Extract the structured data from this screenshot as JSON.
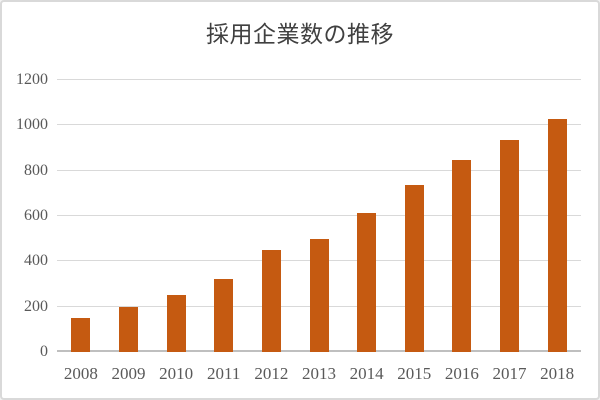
{
  "window": {
    "background_color": "#ffffff",
    "border_color": "#d9d9d9"
  },
  "chart_data": {
    "type": "bar",
    "title": "採用企業数の推移",
    "categories": [
      "2008",
      "2009",
      "2010",
      "2011",
      "2012",
      "2013",
      "2014",
      "2015",
      "2016",
      "2017",
      "2018"
    ],
    "values": [
      150,
      200,
      250,
      320,
      450,
      500,
      615,
      735,
      845,
      935,
      1030
    ],
    "xlabel": "",
    "ylabel": "",
    "ylim": [
      0,
      1200
    ],
    "yticks": [
      0,
      200,
      400,
      600,
      800,
      1000,
      1200
    ],
    "grid": "horizontal",
    "legend_position": "none",
    "bar_color": "#c55a11",
    "gridline_color": "#d9d9d9",
    "axis_line_color": "#bfbfbf",
    "tick_label_color": "#595959",
    "title_color": "#404040"
  }
}
